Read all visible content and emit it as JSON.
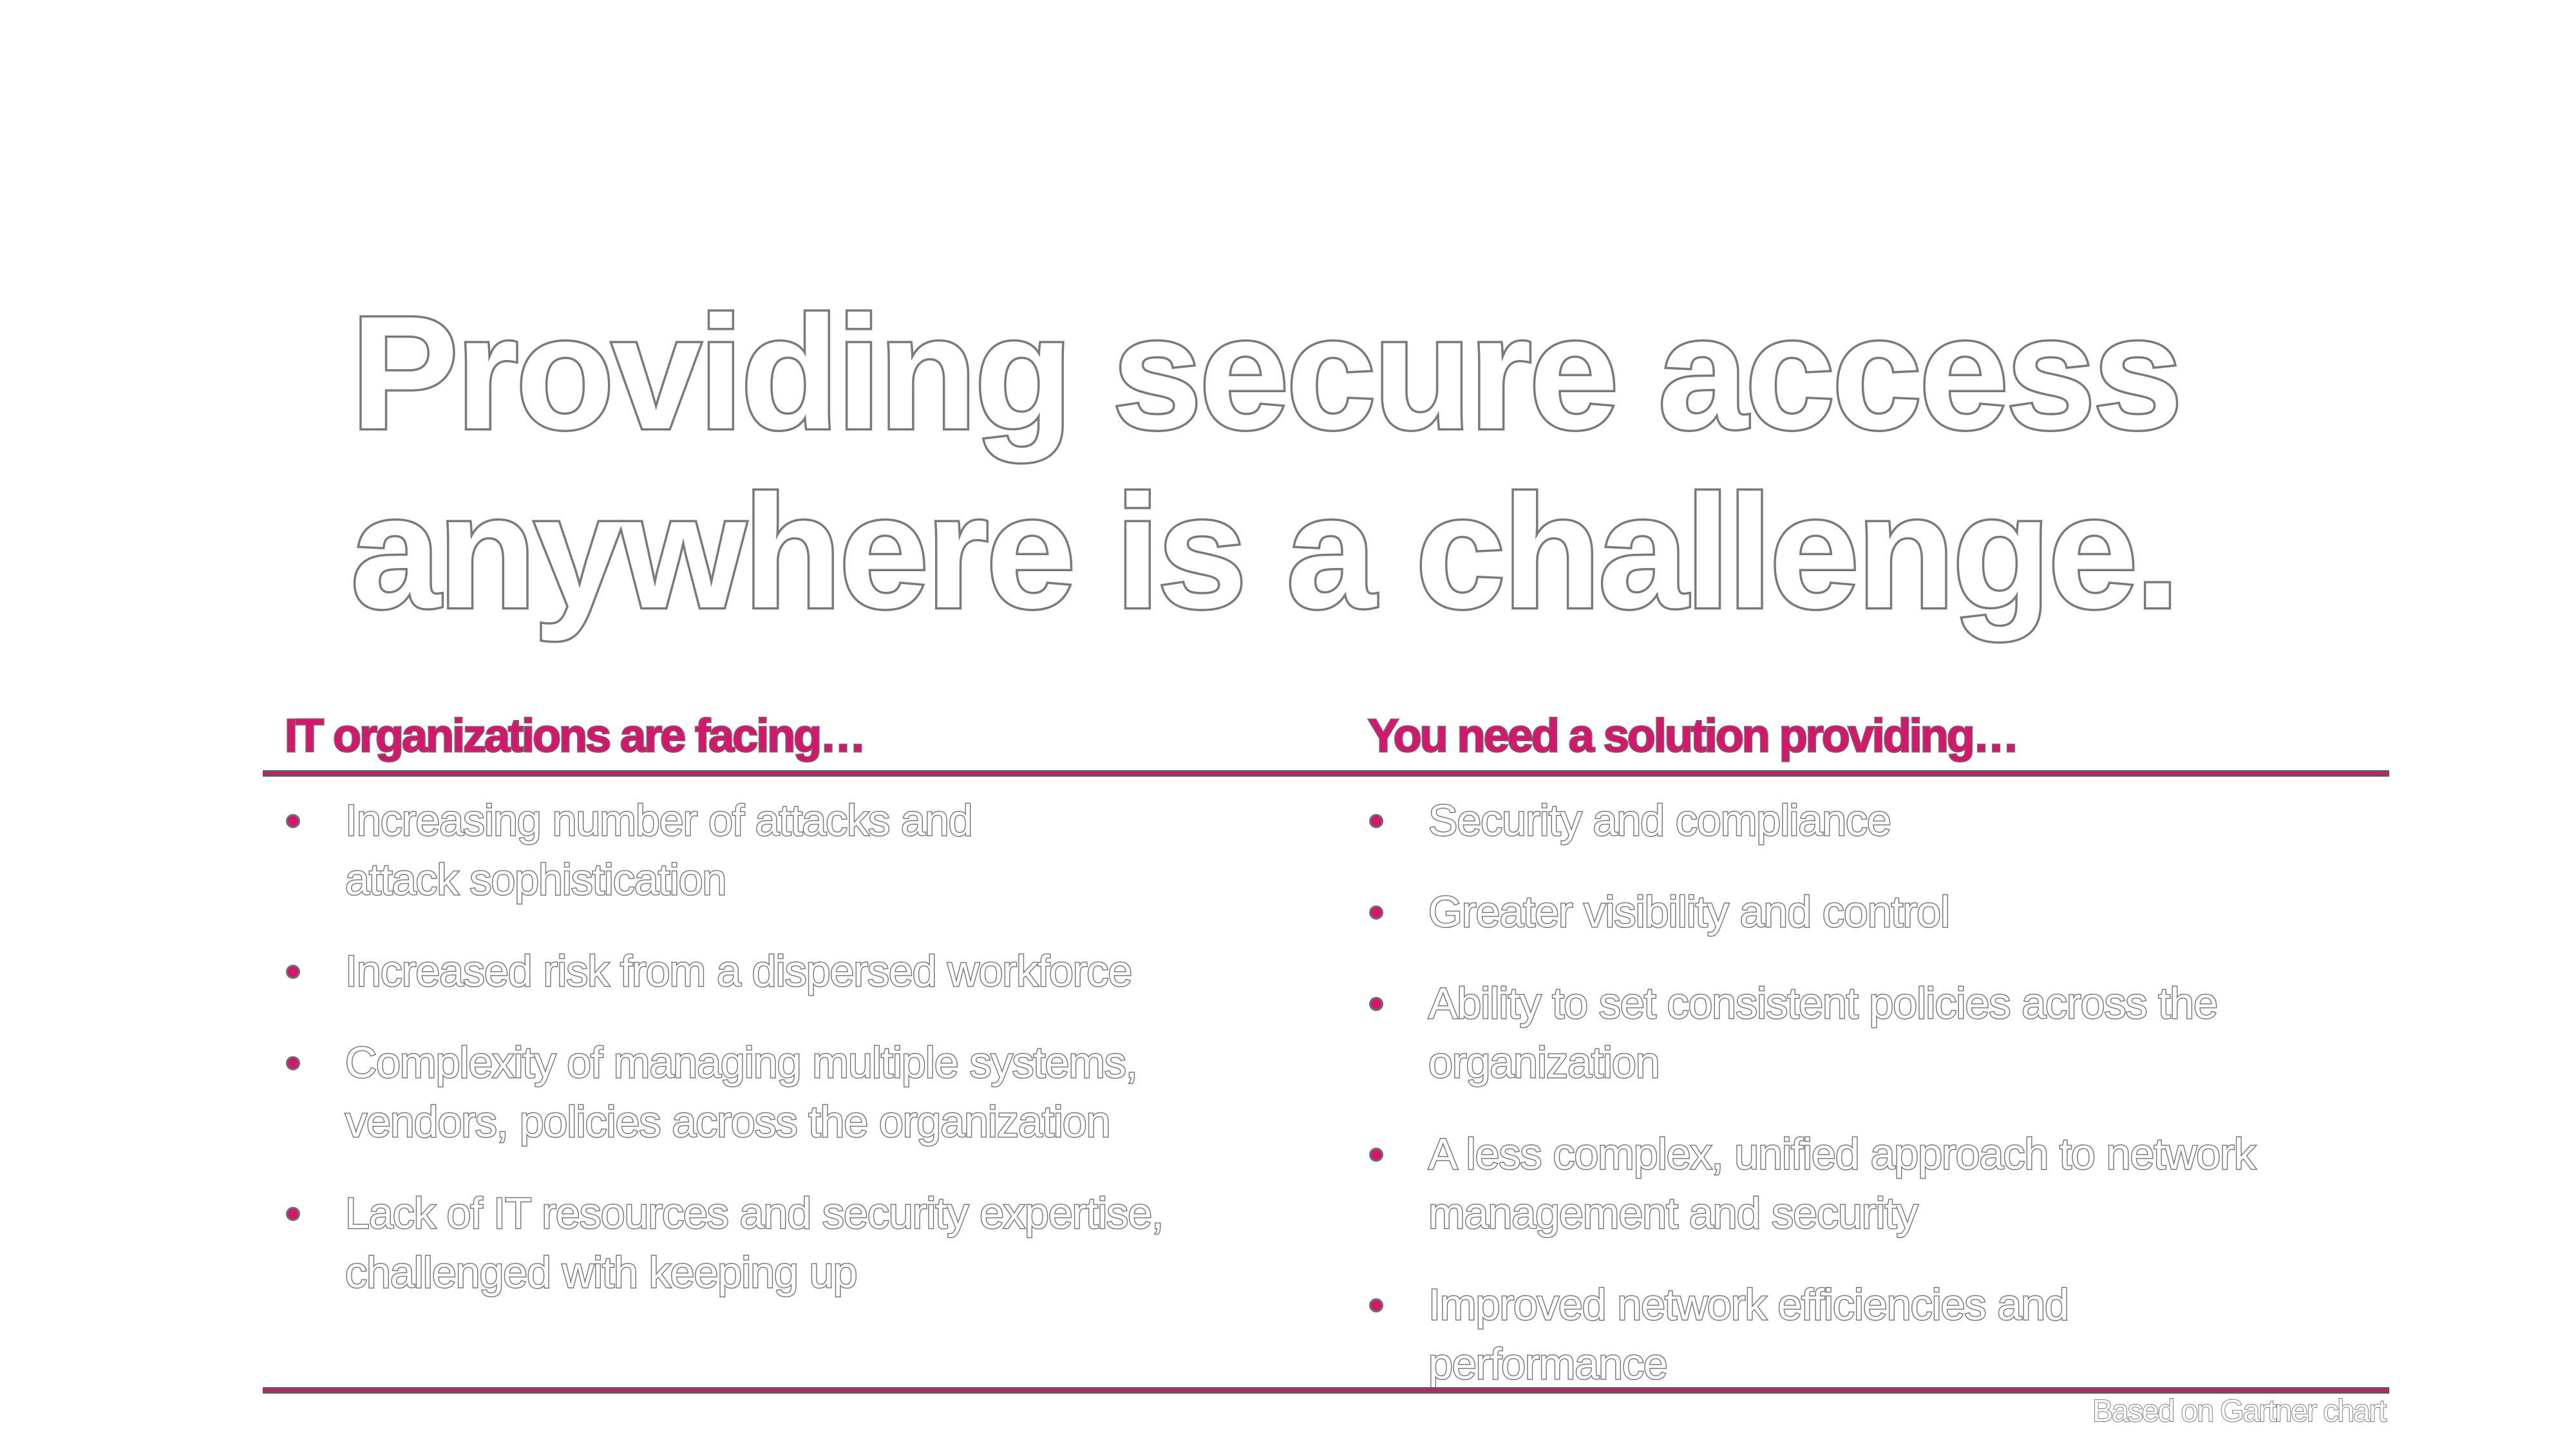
{
  "title": {
    "line1": "Providing secure access",
    "line2": "anywhere is a challenge."
  },
  "left_column": {
    "heading": "IT organizations are facing…",
    "items": [
      {
        "line1": "Increasing number of attacks and",
        "line2": "attack sophistication"
      },
      {
        "line1": "Increased risk from a dispersed workforce",
        "line2": ""
      },
      {
        "line1": "Complexity of managing multiple systems,",
        "line2": "vendors, policies across the organization"
      },
      {
        "line1": "Lack of IT resources and security expertise,",
        "line2": "challenged with keeping up"
      }
    ]
  },
  "right_column": {
    "heading": "You need a solution providing…",
    "items": [
      {
        "line1": "Security and compliance",
        "line2": ""
      },
      {
        "line1": "Greater visibility and control",
        "line2": ""
      },
      {
        "line1": "Ability to set consistent policies across the",
        "line2": "organization"
      },
      {
        "line1": "A less complex, unified approach to network",
        "line2": "management and security"
      },
      {
        "line1": "Improved network efficiencies and",
        "line2": "performance"
      }
    ]
  },
  "footnote": "Based on Gartner chart",
  "colors": {
    "accent": "#d6156c",
    "outline": "#7a7a7a",
    "background": "#ffffff"
  }
}
